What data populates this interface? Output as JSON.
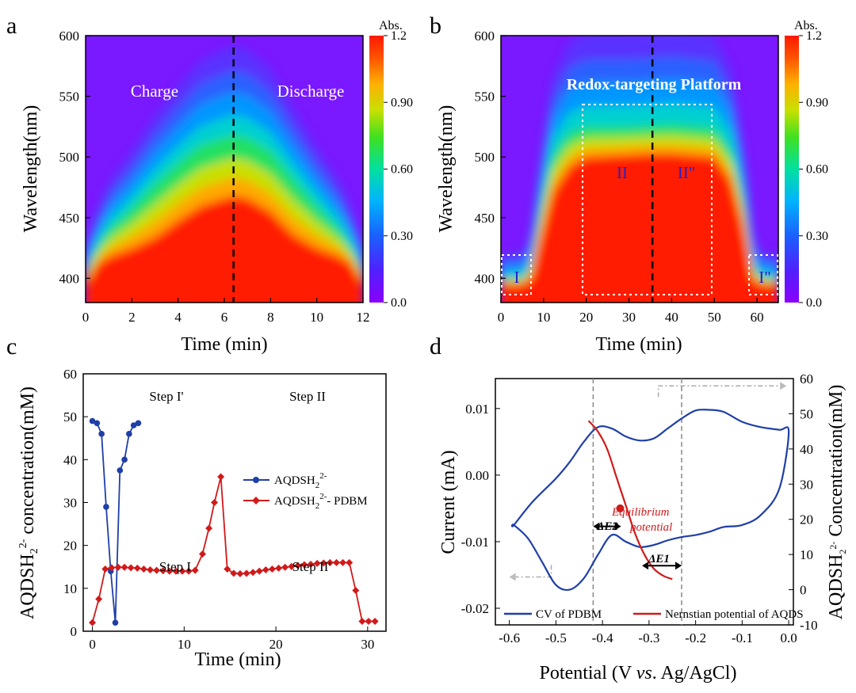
{
  "colors": {
    "blue_series": "#1f3fa8",
    "red_series": "#d11a1a",
    "dashed_line": "#000000",
    "grey_guide": "#888888",
    "heatmap_scale": [
      "#8b00ff",
      "#3a3aff",
      "#0096ff",
      "#00e0c0",
      "#30e030",
      "#c8e000",
      "#ffb000",
      "#ff5000",
      "#ff1a00"
    ]
  },
  "panels": {
    "a": {
      "letter": "a"
    },
    "b": {
      "letter": "b"
    },
    "c": {
      "letter": "c"
    },
    "d": {
      "letter": "d"
    }
  },
  "chart_data": [
    {
      "id": "a",
      "type": "heatmap",
      "xlabel": "Time (min)",
      "ylabel": "Wavelength(nm)",
      "xlim": [
        0,
        12
      ],
      "ylim": [
        380,
        600
      ],
      "x_ticks": [
        "0",
        "2",
        "4",
        "6",
        "8",
        "10",
        "12"
      ],
      "y_ticks": [
        "400",
        "450",
        "500",
        "550",
        "600"
      ],
      "colorbar": {
        "title": "Abs.",
        "range": [
          0.0,
          1.2
        ],
        "ticks": [
          "0.0",
          "0.30",
          "0.60",
          "0.90",
          "1.2"
        ]
      },
      "divider_x": 6.4,
      "annotations": [
        "Charge",
        "Discharge"
      ],
      "band_profile": {
        "x": [
          0,
          0.5,
          1,
          2,
          3,
          4,
          5,
          6,
          6.4,
          7,
          8,
          9,
          10,
          11,
          11.5,
          12
        ],
        "red_top_nm": [
          395,
          412,
          418,
          425,
          434,
          448,
          460,
          466,
          468,
          466,
          455,
          436,
          425,
          418,
          412,
          395
        ],
        "green_top_nm": [
          405,
          425,
          440,
          458,
          478,
          495,
          510,
          516,
          518,
          516,
          505,
          482,
          460,
          440,
          425,
          405
        ]
      }
    },
    {
      "id": "b",
      "type": "heatmap",
      "xlabel": "Time (min)",
      "ylabel": "Wavelength(nm)",
      "xlim": [
        0,
        65
      ],
      "ylim": [
        380,
        600
      ],
      "x_ticks": [
        "0",
        "10",
        "20",
        "30",
        "40",
        "50",
        "60"
      ],
      "y_ticks": [
        "400",
        "450",
        "500",
        "550",
        "600"
      ],
      "colorbar": {
        "title": "Abs.",
        "range": [
          0.0,
          1.2
        ],
        "ticks": [
          "0.0",
          "0.30",
          "0.60",
          "0.90",
          "1.2"
        ]
      },
      "divider_x": 35.5,
      "title_annotation": "Redox-targeting Platform",
      "regions": [
        "I",
        "II",
        "II\"",
        "I\""
      ],
      "band_profile": {
        "x": [
          0,
          5,
          7,
          9,
          12,
          16,
          20,
          30,
          35.5,
          40,
          50,
          54,
          57,
          59,
          61,
          65
        ],
        "red_top_nm": [
          395,
          395,
          400,
          430,
          470,
          492,
          500,
          502,
          503,
          503,
          500,
          480,
          440,
          400,
          395,
          395
        ],
        "green_top_nm": [
          400,
          400,
          410,
          450,
          500,
          520,
          525,
          525,
          526,
          527,
          524,
          505,
          460,
          410,
          400,
          400
        ]
      }
    },
    {
      "id": "c",
      "type": "line",
      "xlabel": "Time  (min)",
      "ylabel": "AQDSH2 2- concentration(mM)",
      "xlim": [
        -1,
        32
      ],
      "ylim": [
        0,
        60
      ],
      "x_ticks": [
        "0",
        "10",
        "20",
        "30"
      ],
      "y_ticks": [
        "0",
        "10",
        "20",
        "30",
        "40",
        "50",
        "60"
      ],
      "series": [
        {
          "name": "AQDSH2 2-",
          "x": [
            0,
            0.5,
            1.0,
            1.5,
            2.0,
            2.5,
            3.0,
            3.5,
            4.0,
            4.5,
            5.0
          ],
          "y": [
            49,
            48.5,
            46,
            29,
            14,
            2,
            37.5,
            40,
            46,
            48,
            48.5
          ]
        },
        {
          "name": "AQDSH2 2- - PDBM",
          "x": [
            0,
            0.7,
            1.4,
            2.1,
            2.8,
            3.5,
            4.2,
            4.9,
            5.6,
            6.3,
            7,
            7.7,
            8.4,
            9.1,
            9.8,
            10.5,
            11.2,
            12.0,
            12.7,
            13.3,
            14.0,
            14.7,
            15.4,
            16.1,
            16.8,
            17.5,
            18.2,
            18.9,
            19.6,
            20.3,
            21.0,
            21.7,
            22.4,
            23.1,
            23.8,
            24.5,
            25.2,
            25.9,
            26.6,
            27.3,
            28.0,
            28.7,
            29.4,
            30.1,
            30.8
          ],
          "y": [
            2,
            7.5,
            14.5,
            14.8,
            14.9,
            14.9,
            14.8,
            14.7,
            14.5,
            14.3,
            14.2,
            14.1,
            14.0,
            14.0,
            14.0,
            14.0,
            14.2,
            18,
            24,
            30,
            36,
            14.5,
            13.5,
            13.4,
            13.5,
            13.7,
            14.0,
            14.3,
            14.5,
            14.7,
            14.9,
            15.1,
            15.3,
            15.5,
            15.6,
            15.8,
            15.9,
            16.0,
            16.0,
            16.0,
            16.0,
            9.5,
            2.3,
            2.3,
            2.3
          ]
        }
      ],
      "step_labels": [
        "Step I'",
        "Step II",
        "Step I",
        "Step II'"
      ]
    },
    {
      "id": "d",
      "type": "line",
      "xlabel": "Potential (V vs. Ag/AgCl)",
      "ylabel": "Current (mA)",
      "y2label": "AQDSH2 2-  Concentration(mM)",
      "xlim": [
        -0.63,
        0.01
      ],
      "ylim": [
        -0.0225,
        0.0145
      ],
      "y2lim": [
        -10,
        60
      ],
      "x_ticks": [
        "-0.6",
        "-0.5",
        "-0.4",
        "-0.3",
        "-0.2",
        "-0.1",
        "0.0"
      ],
      "y_ticks": [
        "-0.02",
        "-0.01",
        "0.00",
        "0.01"
      ],
      "y2_ticks": [
        "-10",
        "0",
        "10",
        "20",
        "30",
        "40",
        "50",
        "60"
      ],
      "guide_lines_x": [
        -0.42,
        -0.23
      ],
      "equilibrium_point": {
        "x": -0.362,
        "y": -0.005
      },
      "annotations": [
        "Equilibrium",
        "potential",
        "ΔE2",
        "ΔE1"
      ],
      "series": [
        {
          "name": "CV of PDBM",
          "x": [
            -0.59,
            -0.55,
            -0.5,
            -0.47,
            -0.44,
            -0.41,
            -0.38,
            -0.35,
            -0.32,
            -0.29,
            -0.26,
            -0.23,
            -0.2,
            -0.17,
            -0.14,
            -0.1,
            -0.06,
            -0.02,
            0.0,
            -0.02,
            -0.06,
            -0.1,
            -0.14,
            -0.17,
            -0.2,
            -0.23,
            -0.26,
            -0.29,
            -0.32,
            -0.35,
            -0.38,
            -0.41,
            -0.44,
            -0.47,
            -0.5,
            -0.53,
            -0.56,
            -0.59
          ],
          "y": [
            -0.0075,
            -0.004,
            -0.0005,
            0.002,
            0.005,
            0.0072,
            0.007,
            0.0058,
            0.0052,
            0.0055,
            0.007,
            0.0085,
            0.0097,
            0.0098,
            0.0095,
            0.008,
            0.0072,
            0.0068,
            0.0065,
            -0.002,
            -0.006,
            -0.0075,
            -0.0078,
            -0.0085,
            -0.009,
            -0.0093,
            -0.0098,
            -0.0105,
            -0.0108,
            -0.01,
            -0.009,
            -0.012,
            -0.0155,
            -0.0172,
            -0.0165,
            -0.013,
            -0.0095,
            -0.0075
          ]
        },
        {
          "name": "Nernstian potential of AQDS",
          "axis": "right",
          "x": [
            -0.43,
            -0.41,
            -0.39,
            -0.37,
            -0.35,
            -0.33,
            -0.31,
            -0.29,
            -0.27,
            -0.25
          ],
          "y": [
            48,
            45,
            40,
            32,
            24,
            16,
            10,
            6,
            4,
            3
          ]
        }
      ]
    }
  ],
  "legend_c": [
    {
      "base": "AQDSH",
      "sub": "2",
      "sup": "2-",
      "tail": ""
    },
    {
      "base": "AQDSH",
      "sub": "2",
      "sup": "2-",
      "tail": "- PDBM"
    }
  ],
  "legend_d": [
    "CV of PDBM",
    "Nernstian potential of AQDS"
  ],
  "c_ylabel": {
    "base": "AQDSH",
    "sub": "2",
    "sup": "2-",
    "tail": " concentration(mM)"
  },
  "d_y2label": {
    "base": "AQDSH",
    "sub": "2",
    "sup": "2-",
    "tail": "  Concentration(mM)"
  },
  "d_xlabel": {
    "pre": "Potential (V ",
    "italic": "vs",
    "post": ". Ag/AgCl)"
  }
}
